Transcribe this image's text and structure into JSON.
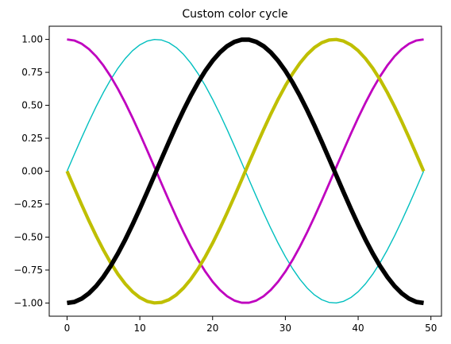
{
  "chart_data": {
    "type": "line",
    "title": "Custom color cycle",
    "xlabel": "",
    "ylabel": "",
    "xlim": [
      -2.45,
      51.45
    ],
    "ylim": [
      -1.1,
      1.1
    ],
    "xticks": [
      0,
      10,
      20,
      30,
      40,
      50
    ],
    "xtick_labels": [
      "0",
      "10",
      "20",
      "30",
      "40",
      "50"
    ],
    "yticks": [
      -1.0,
      -0.75,
      -0.5,
      -0.25,
      0.0,
      0.25,
      0.5,
      0.75,
      1.0
    ],
    "ytick_labels": [
      "−1.00",
      "−0.75",
      "−0.50",
      "−0.25",
      "0.00",
      "0.25",
      "0.50",
      "0.75",
      "1.00"
    ],
    "grid": false,
    "legend": "none",
    "x": [
      0,
      49
    ],
    "series": [
      {
        "color": "#00bfbf",
        "linewidth": 1,
        "formula": "sin(2*pi*x/49)",
        "x_range": [
          0,
          49
        ],
        "y_range": [
          -1,
          1
        ]
      },
      {
        "color": "#bf00bf",
        "linewidth": 2,
        "formula": "cos(2*pi*x/49)",
        "x_range": [
          0,
          49
        ],
        "y_range": [
          -1,
          1
        ]
      },
      {
        "color": "#bfbf00",
        "linewidth": 3,
        "formula": "-sin(2*pi*x/49)",
        "x_range": [
          0,
          49
        ],
        "y_range": [
          -1,
          1
        ]
      },
      {
        "color": "#000000",
        "linewidth": 4,
        "formula": "-cos(2*pi*x/49)",
        "x_range": [
          0,
          49
        ],
        "y_range": [
          -1,
          1
        ]
      }
    ]
  }
}
